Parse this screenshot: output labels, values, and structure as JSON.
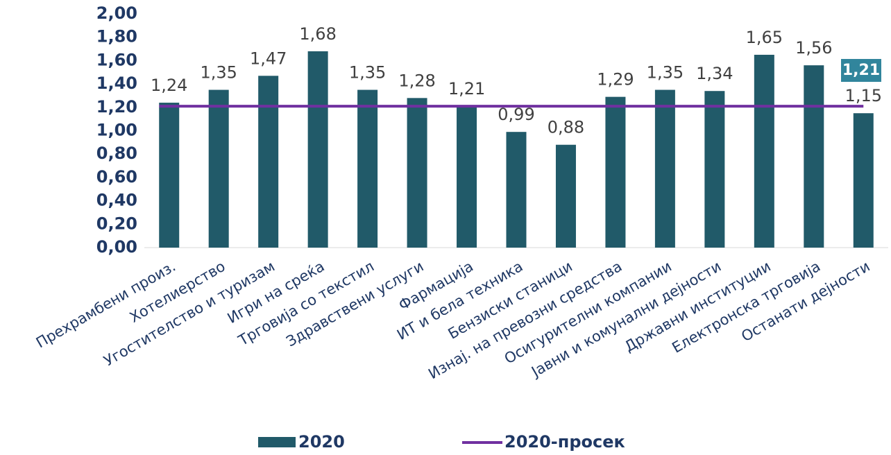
{
  "chart_data": {
    "type": "bar",
    "categories": [
      "Прехрамбени произ.",
      "Хотелиерство",
      "Угостителство и туризам",
      "Игри на среќа",
      "Трговија со текстил",
      "Здравствени услуги",
      "Фармација",
      "ИТ и бела техника",
      "Бензиски станици",
      "Изнај. на превозни средства",
      "Осигурителни компании",
      "Јавни и комунални дејности",
      "Државни институции",
      "Електронска трговија",
      "Останати дејности"
    ],
    "series": [
      {
        "name": "2020",
        "color": "#215a69",
        "values": [
          1.24,
          1.35,
          1.47,
          1.68,
          1.35,
          1.28,
          1.21,
          0.99,
          0.88,
          1.29,
          1.35,
          1.34,
          1.65,
          1.56,
          1.15
        ],
        "value_labels": [
          "1,24",
          "1,35",
          "1,47",
          "1,68",
          "1,35",
          "1,28",
          "1,21",
          "0,99",
          "0,88",
          "1,29",
          "1,35",
          "1,34",
          "1,65",
          "1,56",
          "1,15"
        ]
      }
    ],
    "average": {
      "name": "2020-просек",
      "color": "#7030a0",
      "value": 1.21,
      "value_label": "1,21"
    },
    "ylim": [
      0,
      2
    ],
    "yticks": [
      {
        "value": 0,
        "label": "0,00"
      },
      {
        "value": 0.2,
        "label": "0,20"
      },
      {
        "value": 0.4,
        "label": "0,40"
      },
      {
        "value": 0.6,
        "label": "0,60"
      },
      {
        "value": 0.8,
        "label": "0,80"
      },
      {
        "value": 1,
        "label": "1,00"
      },
      {
        "value": 1.2,
        "label": "1,20"
      },
      {
        "value": 1.4,
        "label": "1,40"
      },
      {
        "value": 1.6,
        "label": "1,60"
      },
      {
        "value": 1.8,
        "label": "1,80"
      },
      {
        "value": 2,
        "label": "2,00"
      }
    ],
    "legend": "bottom"
  }
}
